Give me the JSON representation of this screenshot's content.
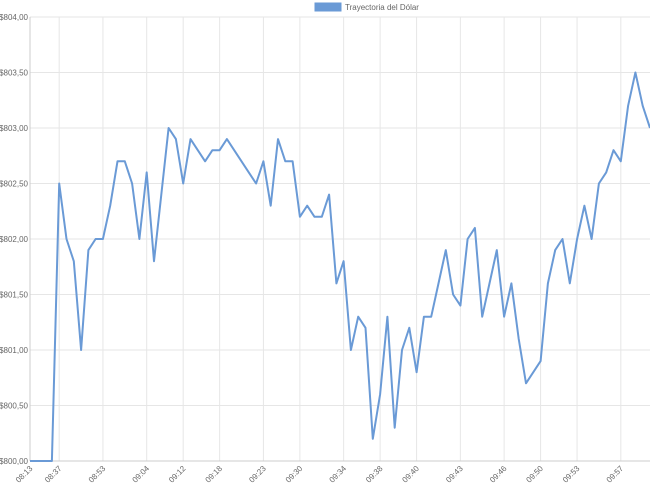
{
  "chart_data": {
    "type": "line",
    "series": [
      {
        "name": "Trayectoria del Dólar",
        "color": "#6a9ad6",
        "values": [
          800.0,
          800.0,
          800.0,
          800.0,
          802.5,
          802.0,
          801.8,
          801.0,
          801.9,
          802.0,
          802.0,
          802.3,
          802.7,
          802.7,
          802.5,
          802.0,
          802.6,
          801.8,
          802.4,
          803.0,
          802.9,
          802.5,
          802.9,
          802.8,
          802.7,
          802.8,
          802.8,
          802.9,
          802.8,
          802.7,
          802.6,
          802.5,
          802.7,
          802.3,
          802.9,
          802.7,
          802.7,
          802.2,
          802.3,
          802.2,
          802.2,
          802.4,
          801.6,
          801.8,
          801.0,
          801.3,
          801.2,
          800.2,
          800.6,
          801.3,
          800.3,
          801.0,
          801.2,
          800.8,
          801.3,
          801.3,
          801.6,
          801.9,
          801.5,
          801.4,
          802.0,
          802.1,
          801.3,
          801.6,
          801.9,
          801.3,
          801.6,
          801.1,
          800.7,
          800.8,
          800.9,
          801.6,
          801.9,
          802.0,
          801.6,
          802.0,
          802.3,
          802.0,
          802.5,
          802.6,
          802.8,
          802.7,
          803.2,
          803.5,
          803.2,
          803.0
        ]
      }
    ],
    "categories": [
      "08:13",
      null,
      null,
      null,
      "08:37",
      null,
      null,
      null,
      null,
      null,
      "08:53",
      null,
      null,
      null,
      null,
      null,
      "09:04",
      null,
      null,
      null,
      null,
      "09:12",
      null,
      null,
      null,
      null,
      "09:18",
      null,
      null,
      null,
      null,
      null,
      "09:23",
      null,
      null,
      null,
      null,
      "09:30",
      null,
      null,
      null,
      null,
      null,
      "09:34",
      null,
      null,
      null,
      null,
      "09:38",
      null,
      null,
      null,
      null,
      "09:40",
      null,
      null,
      null,
      null,
      null,
      "09:43",
      null,
      null,
      null,
      null,
      null,
      "09:46",
      null,
      null,
      null,
      null,
      "09:50",
      null,
      null,
      null,
      null,
      "09:53",
      null,
      null,
      null,
      null,
      null,
      "09:57",
      null,
      null,
      null,
      null
    ],
    "ylim": [
      800,
      804
    ],
    "yticks": [
      {
        "value": 800,
        "label": "$800,00"
      },
      {
        "value": 800.5,
        "label": "$800,50"
      },
      {
        "value": 801,
        "label": "$801,00"
      },
      {
        "value": 801.5,
        "label": "$801,50"
      },
      {
        "value": 802,
        "label": "$802,00"
      },
      {
        "value": 802.5,
        "label": "$802,50"
      },
      {
        "value": 803,
        "label": "$803,00"
      },
      {
        "value": 803.5,
        "label": "$803,50"
      },
      {
        "value": 804,
        "label": "$804,00"
      }
    ],
    "grid": true,
    "legend": "top"
  }
}
